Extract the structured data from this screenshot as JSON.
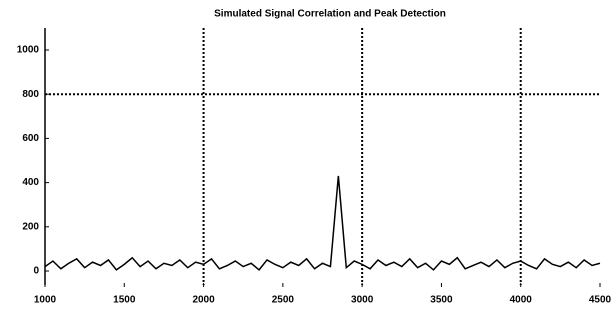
{
  "chart_data": {
    "type": "line",
    "title": "Simulated Signal Correlation and Peak Detection",
    "x": [
      1000,
      1050,
      1100,
      1150,
      1200,
      1250,
      1300,
      1350,
      1400,
      1450,
      1500,
      1550,
      1600,
      1650,
      1700,
      1750,
      1800,
      1850,
      1900,
      1950,
      2000,
      2050,
      2100,
      2150,
      2200,
      2250,
      2300,
      2350,
      2400,
      2450,
      2500,
      2550,
      2600,
      2650,
      2700,
      2750,
      2800,
      2850,
      2900,
      2950,
      3000,
      3050,
      3100,
      3150,
      3200,
      3250,
      3300,
      3350,
      3400,
      3450,
      3500,
      3550,
      3600,
      3650,
      3700,
      3750,
      3800,
      3850,
      3900,
      3950,
      4000,
      4050,
      4100,
      4150,
      4200,
      4250,
      4300,
      4350,
      4400,
      4450,
      4500
    ],
    "series": [
      {
        "color": "#000000",
        "values": [
          20,
          45,
          10,
          35,
          55,
          15,
          40,
          25,
          50,
          5,
          30,
          60,
          20,
          45,
          10,
          35,
          25,
          50,
          15,
          40,
          30,
          55,
          10,
          25,
          45,
          20,
          35,
          5,
          50,
          30,
          15,
          40,
          25,
          55,
          10,
          35,
          20,
          430,
          15,
          45,
          30,
          10,
          50,
          25,
          40,
          20,
          55,
          15,
          35,
          5,
          45,
          30,
          60,
          10,
          25,
          40,
          20,
          50,
          15,
          35,
          45,
          25,
          10,
          55,
          30,
          20,
          40,
          15,
          50,
          25,
          35
        ]
      }
    ],
    "xlim": [
      1000,
      4500
    ],
    "xticks": [
      1000,
      1500,
      2000,
      2500,
      3000,
      3500,
      4000,
      4500
    ],
    "ylim": [
      0,
      1000
    ],
    "yticks": [
      0,
      200,
      400,
      600,
      800,
      1000
    ],
    "vlines": [
      2000,
      3000,
      4000
    ],
    "hlines": [
      800
    ]
  }
}
